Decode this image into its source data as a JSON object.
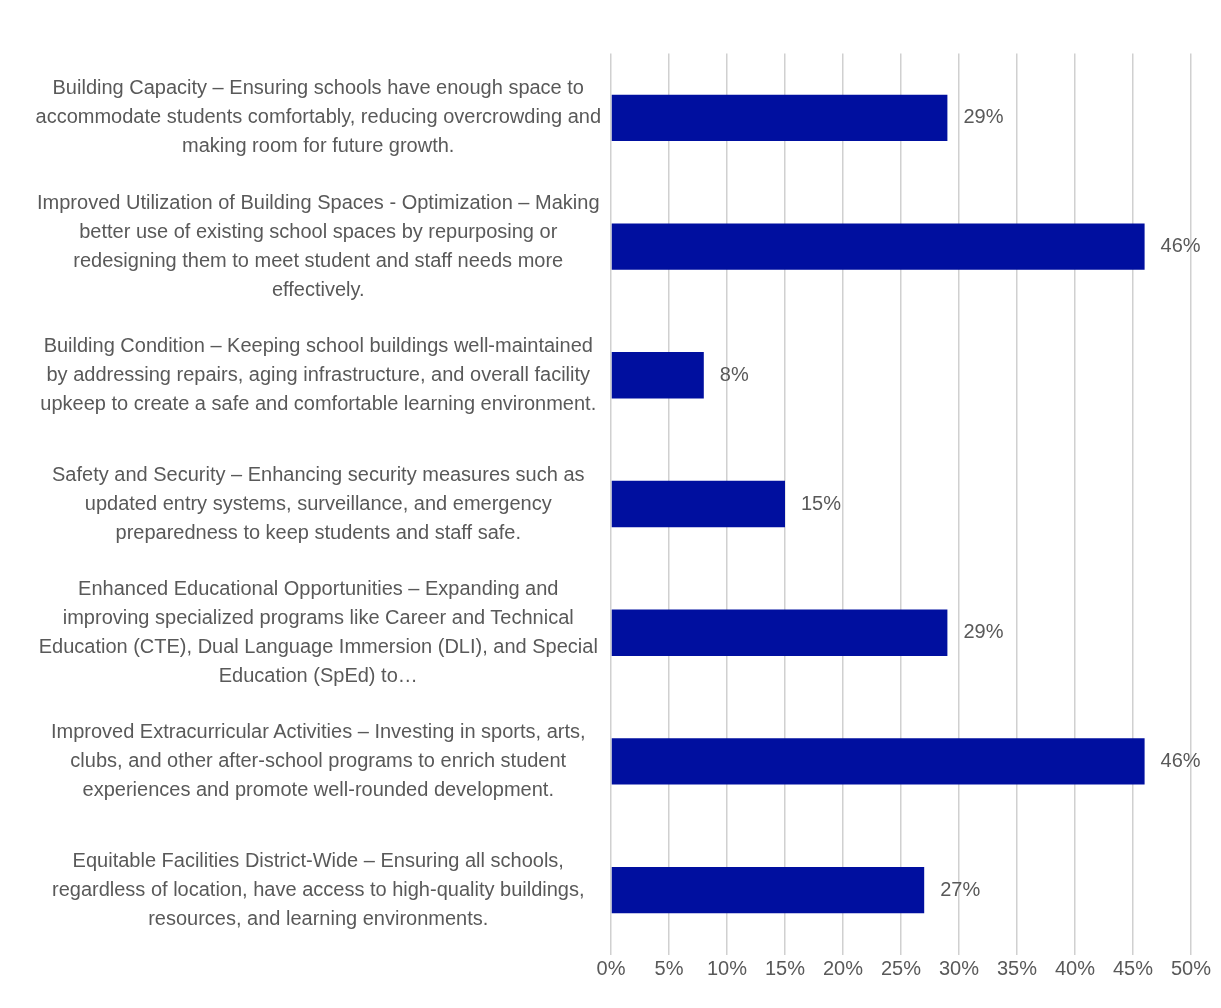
{
  "chart_data": {
    "type": "bar",
    "orientation": "horizontal",
    "categories": [
      "Building Capacity – Ensuring schools have enough space to accommodate students comfortably, reducing overcrowding and making room for future growth.",
      "Improved Utilization of Building Spaces - Optimization – Making better use of existing school spaces by repurposing or redesigning them to meet student and staff needs more effectively.",
      "Building Condition – Keeping school buildings well-maintained by addressing repairs, aging infrastructure, and overall facility upkeep to create a safe and comfortable learning environment.",
      "Safety and Security – Enhancing security measures such as updated entry systems, surveillance, and emergency preparedness to keep students and staff safe.",
      "Enhanced Educational Opportunities – Expanding and improving specialized programs like Career and Technical Education (CTE), Dual Language Immersion (DLI), and Special Education (SpEd) to…",
      "Improved Extracurricular Activities – Investing in sports, arts, clubs, and other after-school programs to enrich student experiences and promote well-rounded development.",
      "Equitable Facilities District-Wide – Ensuring all schools, regardless of location, have access to high-quality buildings, resources, and learning environments."
    ],
    "values": [
      29,
      46,
      8,
      15,
      29,
      46,
      27
    ],
    "value_labels": [
      "29%",
      "46%",
      "8%",
      "15%",
      "29%",
      "46%",
      "27%"
    ],
    "color": "#000f9f",
    "xlim": [
      0,
      50
    ],
    "xticks": [
      {
        "value": 0,
        "label": "0%"
      },
      {
        "value": 5,
        "label": "5%"
      },
      {
        "value": 10,
        "label": "10%"
      },
      {
        "value": 15,
        "label": "15%"
      },
      {
        "value": 20,
        "label": "20%"
      },
      {
        "value": 25,
        "label": "25%"
      },
      {
        "value": 30,
        "label": "30%"
      },
      {
        "value": 35,
        "label": "35%"
      },
      {
        "value": 40,
        "label": "40%"
      },
      {
        "value": 45,
        "label": "45%"
      },
      {
        "value": 50,
        "label": "50%"
      }
    ],
    "grid": "x",
    "legend": false
  }
}
